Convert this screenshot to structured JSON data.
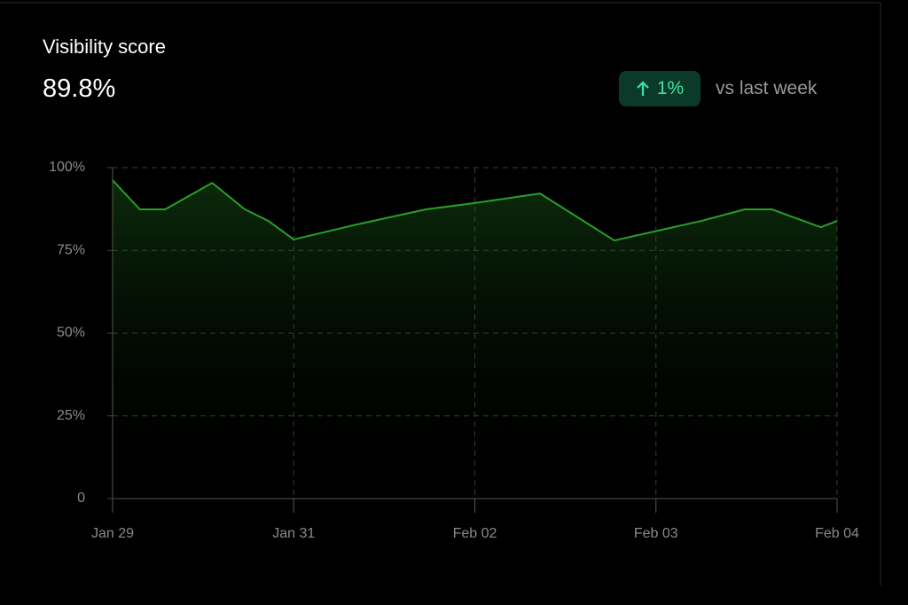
{
  "header": {
    "title": "Visibility score",
    "value": "89.8%",
    "change": "1%",
    "comparison": "vs last week"
  },
  "chart_data": {
    "type": "area",
    "x": [
      0,
      0.15,
      0.29,
      0.55,
      0.73,
      0.86,
      1,
      1.33,
      1.73,
      2,
      2.36,
      2.77,
      3.25,
      3.49,
      3.64,
      3.91,
      4
    ],
    "values": [
      96.2,
      87.4,
      87.4,
      95.4,
      87.4,
      83.9,
      78.3,
      82.6,
      87.4,
      89.3,
      92.2,
      78,
      83.9,
      87.4,
      87.4,
      82,
      83.9
    ],
    "color": "#2a9d2a",
    "xlim": [
      0,
      4
    ],
    "xticks": [
      {
        "value": 0,
        "label": "Jan 29"
      },
      {
        "value": 1,
        "label": "Jan 31"
      },
      {
        "value": 2,
        "label": "Feb 02"
      },
      {
        "value": 3,
        "label": "Feb 03"
      },
      {
        "value": 4,
        "label": "Feb 04"
      }
    ],
    "ylim": [
      0,
      100
    ],
    "yticks": [
      0,
      {
        "value": 25,
        "label": "25%"
      },
      {
        "value": 50,
        "label": "50%"
      },
      {
        "value": 75,
        "label": "75%"
      },
      {
        "value": 100,
        "label": "100%"
      }
    ],
    "grid": true
  }
}
